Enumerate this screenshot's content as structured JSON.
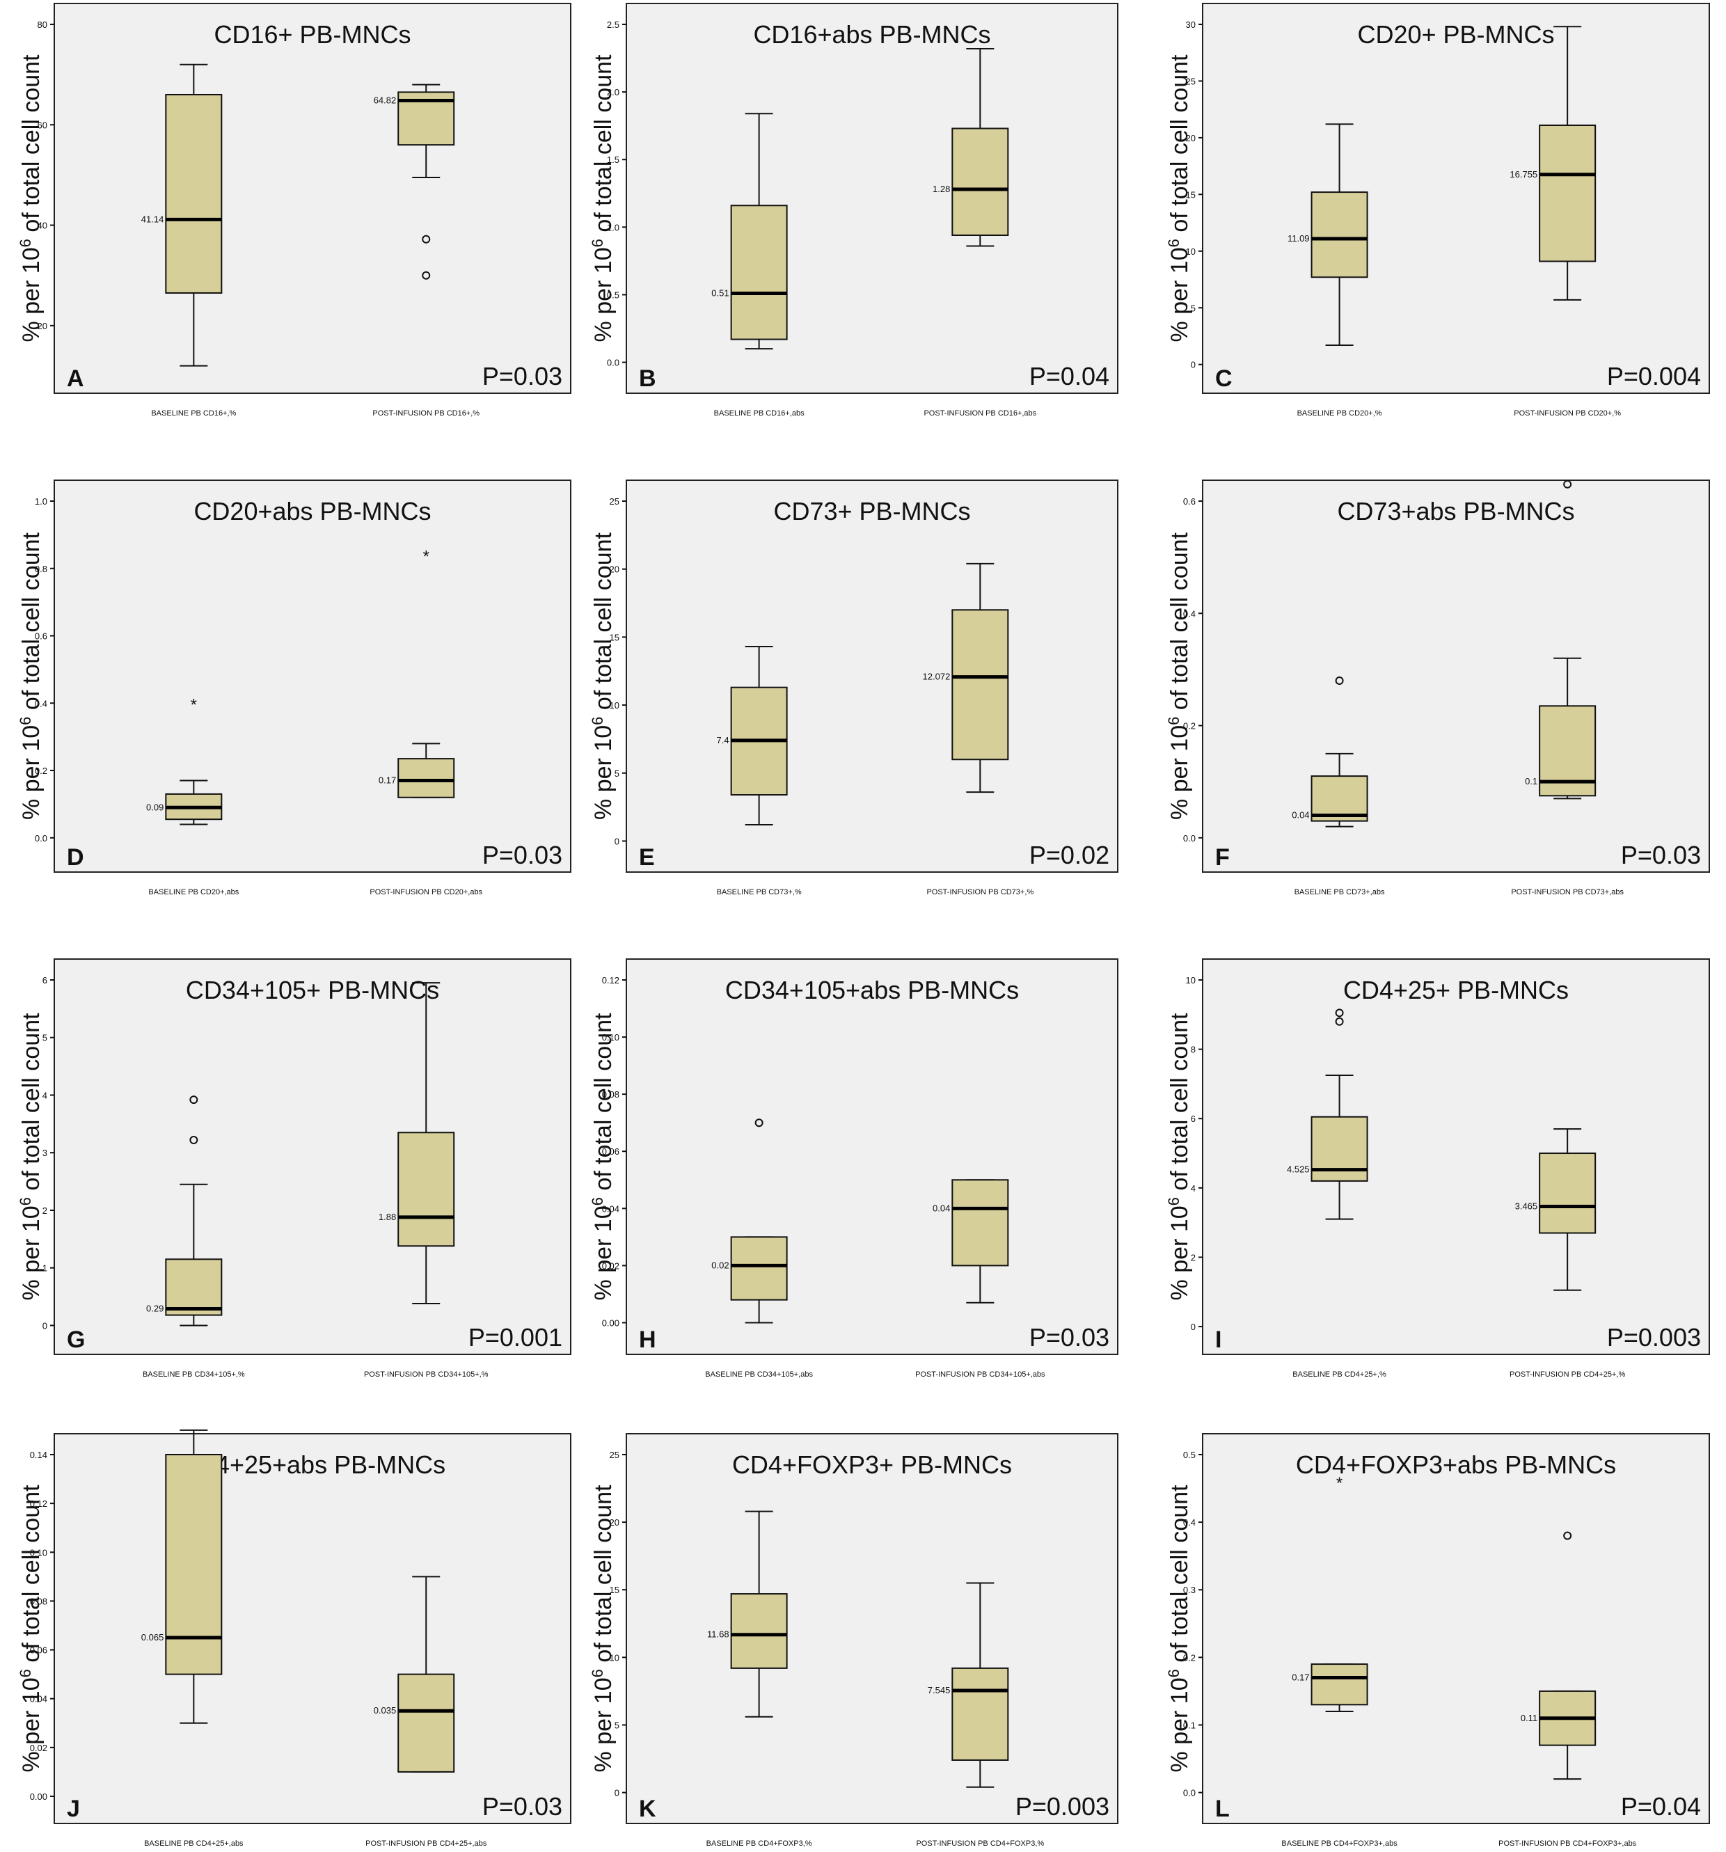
{
  "chart_data": [
    {
      "type": "box",
      "letter": "A",
      "title": "CD16+ PB-MNCs",
      "pvalue": "P=0.03",
      "ylabel": "% per 10",
      "ylabel_sup": "6",
      "ylabel_tail": " of total cell count",
      "categories": [
        "BASELINE PB CD16+,%",
        "POST-INFUSION PB CD16+,%"
      ],
      "ylim": [
        10,
        80
      ],
      "yticks": [
        20,
        40,
        60,
        80
      ],
      "ytick_labels": [
        "20",
        "40",
        "60",
        "80"
      ],
      "boxes": [
        {
          "min": 12,
          "q1": 26.5,
          "median": 41.14,
          "q3": 66,
          "max": 72,
          "median_label": "41.14",
          "outliers": []
        },
        {
          "min": 49.5,
          "q1": 56,
          "median": 64.82,
          "q3": 66.5,
          "max": 68,
          "median_label": "64.82",
          "outliers": [
            {
              "value": 37.2,
              "marker": "o"
            },
            {
              "value": 30,
              "marker": "o"
            }
          ]
        }
      ]
    },
    {
      "type": "box",
      "letter": "B",
      "title": "CD16+abs PB-MNCs",
      "pvalue": "P=0.04",
      "ylabel": "% per 10",
      "ylabel_sup": "6",
      "ylabel_tail": " of total cell count",
      "categories": [
        "BASELINE PB CD16+,abs",
        "POST-INFUSION PB CD16+,abs"
      ],
      "ylim": [
        -0.1,
        2.5
      ],
      "yticks": [
        0,
        0.5,
        1,
        1.5,
        2,
        2.5
      ],
      "ytick_labels": [
        "0.0",
        "0.5",
        "1.0",
        "1.5",
        "2.0",
        "2.5"
      ],
      "boxes": [
        {
          "min": 0.1,
          "q1": 0.17,
          "median": 0.51,
          "q3": 1.16,
          "max": 1.84,
          "median_label": "0.51",
          "outliers": []
        },
        {
          "min": 0.86,
          "q1": 0.94,
          "median": 1.28,
          "q3": 1.73,
          "max": 2.32,
          "median_label": "1.28",
          "outliers": []
        }
      ]
    },
    {
      "type": "box",
      "letter": "C",
      "title": "CD20+ PB-MNCs",
      "pvalue": "P=0.004",
      "ylabel": "% per 10",
      "ylabel_sup": "6",
      "ylabel_tail": " of total cell count",
      "categories": [
        "BASELINE PB CD20+,%",
        "POST-INFUSION PB CD20+,%"
      ],
      "ylim": [
        -1,
        30
      ],
      "yticks": [
        0,
        5,
        10,
        15,
        20,
        25,
        30
      ],
      "ytick_labels": [
        "0",
        "5",
        "10",
        "15",
        "20",
        "25",
        "30"
      ],
      "boxes": [
        {
          "min": 1.7,
          "q1": 7.7,
          "median": 11.09,
          "q3": 15.2,
          "max": 21.2,
          "median_label": "11.09",
          "outliers": []
        },
        {
          "min": 5.7,
          "q1": 9.1,
          "median": 16.755,
          "q3": 21.1,
          "max": 29.8,
          "median_label": "16.755",
          "outliers": []
        }
      ]
    },
    {
      "type": "box",
      "letter": "D",
      "title": "CD20+abs PB-MNCs",
      "pvalue": "P=0.03",
      "ylabel": "% per 10",
      "ylabel_sup": "6",
      "ylabel_tail": " of total cell count",
      "categories": [
        "BASELINE PB CD20+,abs",
        "POST-INFUSION PB CD20+,abs"
      ],
      "ylim": [
        -0.05,
        1
      ],
      "yticks": [
        0,
        0.2,
        0.4,
        0.6,
        0.8,
        1
      ],
      "ytick_labels": [
        "0.0",
        "0.2",
        "0.4",
        "0.6",
        "0.8",
        "1.0"
      ],
      "boxes": [
        {
          "min": 0.04,
          "q1": 0.055,
          "median": 0.09,
          "q3": 0.13,
          "max": 0.17,
          "median_label": "0.09",
          "outliers": [
            {
              "value": 0.4,
              "marker": "*"
            }
          ]
        },
        {
          "min": 0.12,
          "q1": 0.12,
          "median": 0.17,
          "q3": 0.235,
          "max": 0.28,
          "median_label": "0.17",
          "outliers": [
            {
              "value": 0.84,
              "marker": "*"
            }
          ]
        }
      ]
    },
    {
      "type": "box",
      "letter": "E",
      "title": "CD73+ PB-MNCs",
      "pvalue": "P=0.02",
      "ylabel": "% per 10",
      "ylabel_sup": "6",
      "ylabel_tail": " of total cell count",
      "categories": [
        "BASELINE PB CD73+,%",
        "POST-INFUSION PB CD73+,%"
      ],
      "ylim": [
        -1,
        25
      ],
      "yticks": [
        0,
        5,
        10,
        15,
        20,
        25
      ],
      "ytick_labels": [
        "0",
        "5",
        "10",
        "15",
        "20",
        "25"
      ],
      "boxes": [
        {
          "min": 1.2,
          "q1": 3.4,
          "median": 7.4,
          "q3": 11.3,
          "max": 14.3,
          "median_label": "7.4",
          "outliers": []
        },
        {
          "min": 3.6,
          "q1": 6,
          "median": 12.072,
          "q3": 17,
          "max": 20.4,
          "median_label": "12.072",
          "outliers": []
        }
      ]
    },
    {
      "type": "box",
      "letter": "F",
      "title": "CD73+abs PB-MNCs",
      "pvalue": "P=0.03",
      "ylabel": "% per 10",
      "ylabel_sup": "6",
      "ylabel_tail": " of total cell count",
      "categories": [
        "BASELINE PB CD73+,abs",
        "POST-INFUSION PB CD73+,abs"
      ],
      "ylim": [
        -0.03,
        0.6
      ],
      "yticks": [
        0,
        0.2,
        0.4,
        0.6
      ],
      "ytick_labels": [
        "0.0",
        "0.2",
        "0.4",
        "0.6"
      ],
      "boxes": [
        {
          "min": 0.02,
          "q1": 0.03,
          "median": 0.04,
          "q3": 0.11,
          "max": 0.15,
          "median_label": "0.04",
          "outliers": [
            {
              "value": 0.28,
              "marker": "o"
            }
          ]
        },
        {
          "min": 0.07,
          "q1": 0.075,
          "median": 0.1,
          "q3": 0.235,
          "max": 0.32,
          "median_label": "0.1",
          "outliers": [
            {
              "value": 0.63,
              "marker": "o"
            }
          ]
        }
      ]
    },
    {
      "type": "box",
      "letter": "G",
      "title": "CD34+105+ PB-MNCs",
      "pvalue": "P=0.001",
      "ylabel": "% per 10",
      "ylabel_sup": "6",
      "ylabel_tail": " of total cell count",
      "categories": [
        "BASELINE PB CD34+105+,%",
        "POST-INFUSION PB CD34+105+,%"
      ],
      "ylim": [
        -0.2,
        6
      ],
      "yticks": [
        0,
        1,
        2,
        3,
        4,
        5,
        6
      ],
      "ytick_labels": [
        "0",
        "1",
        "2",
        "3",
        "4",
        "5",
        "6"
      ],
      "boxes": [
        {
          "min": 0,
          "q1": 0.18,
          "median": 0.29,
          "q3": 1.15,
          "max": 2.45,
          "median_label": "0.29",
          "outliers": [
            {
              "value": 3.92,
              "marker": "o"
            },
            {
              "value": 3.22,
              "marker": "o"
            }
          ]
        },
        {
          "min": 0.38,
          "q1": 1.38,
          "median": 1.88,
          "q3": 3.35,
          "max": 5.95,
          "median_label": "1.88",
          "outliers": []
        }
      ]
    },
    {
      "type": "box",
      "letter": "H",
      "title": "CD34+105+abs PB-MNCs",
      "pvalue": "P=0.03",
      "ylabel": "% per 10",
      "ylabel_sup": "6",
      "ylabel_tail": " of total cell count",
      "categories": [
        "BASELINE PB CD34+105+,abs",
        "POST-INFUSION PB CD34+105+,abs"
      ],
      "ylim": [
        -0.005,
        0.12
      ],
      "yticks": [
        0,
        0.02,
        0.04,
        0.06,
        0.08,
        0.1,
        0.12
      ],
      "ytick_labels": [
        "0.00",
        "0.02",
        "0.04",
        "0.06",
        "0.08",
        "0.10",
        "0.12"
      ],
      "boxes": [
        {
          "min": 0,
          "q1": 0.008,
          "median": 0.02,
          "q3": 0.03,
          "max": 0.03,
          "median_label": "0.02",
          "outliers": [
            {
              "value": 0.07,
              "marker": "o"
            }
          ]
        },
        {
          "min": 0.007,
          "q1": 0.02,
          "median": 0.04,
          "q3": 0.05,
          "max": 0.05,
          "median_label": "0.04",
          "outliers": []
        }
      ]
    },
    {
      "type": "box",
      "letter": "I",
      "title": "CD4+25+ PB-MNCs",
      "pvalue": "P=0.003",
      "ylabel": "% per 10",
      "ylabel_sup": "6",
      "ylabel_tail": " of total cell count",
      "categories": [
        "BASELINE PB CD4+25+,%",
        "POST-INFUSION PB CD4+25+,%"
      ],
      "ylim": [
        -0.3,
        10
      ],
      "yticks": [
        0,
        2,
        4,
        6,
        8,
        10
      ],
      "ytick_labels": [
        "0",
        "2",
        "4",
        "6",
        "8",
        "10"
      ],
      "boxes": [
        {
          "min": 3.1,
          "q1": 4.2,
          "median": 4.525,
          "q3": 6.05,
          "max": 7.25,
          "median_label": "4.525",
          "outliers": [
            {
              "value": 9.05,
              "marker": "o"
            },
            {
              "value": 8.8,
              "marker": "o"
            }
          ]
        },
        {
          "min": 1.05,
          "q1": 2.7,
          "median": 3.465,
          "q3": 5,
          "max": 5.7,
          "median_label": "3.465",
          "outliers": []
        }
      ]
    },
    {
      "type": "box",
      "letter": "J",
      "title": "CD4+25+abs PB-MNCs",
      "pvalue": "P=0.03",
      "ylabel": "% per 10",
      "ylabel_sup": "6",
      "ylabel_tail": " of total cell count",
      "categories": [
        "BASELINE PB CD4+25+,abs",
        "POST-INFUSION PB CD4+25+,abs"
      ],
      "ylim": [
        -0.004,
        0.14
      ],
      "yticks": [
        0,
        0.02,
        0.04,
        0.06,
        0.08,
        0.1,
        0.12,
        0.14
      ],
      "ytick_labels": [
        "0.00",
        "0.02",
        "0.04",
        "0.06",
        "0.08",
        "0.10",
        "0.12",
        "0.14"
      ],
      "boxes": [
        {
          "min": 0.03,
          "q1": 0.05,
          "median": 0.065,
          "q3": 0.14,
          "max": 0.15,
          "median_label": "0.065",
          "outliers": []
        },
        {
          "min": 0.01,
          "q1": 0.01,
          "median": 0.035,
          "q3": 0.05,
          "max": 0.09,
          "median_label": "0.035",
          "outliers": []
        }
      ]
    },
    {
      "type": "box",
      "letter": "K",
      "title": "CD4+FOXP3+ PB-MNCs",
      "pvalue": "P=0.003",
      "ylabel": "% per 10",
      "ylabel_sup": "6",
      "ylabel_tail": " of total cell count",
      "categories": [
        "BASELINE PB CD4+FOXP3,%",
        "POST-INFUSION PB CD4+FOXP3,%"
      ],
      "ylim": [
        -1,
        25
      ],
      "yticks": [
        0,
        5,
        10,
        15,
        20,
        25
      ],
      "ytick_labels": [
        "0",
        "5",
        "10",
        "15",
        "20",
        "25"
      ],
      "boxes": [
        {
          "min": 5.6,
          "q1": 9.2,
          "median": 11.68,
          "q3": 14.7,
          "max": 20.8,
          "median_label": "11.68",
          "outliers": []
        },
        {
          "min": 0.4,
          "q1": 2.4,
          "median": 7.545,
          "q3": 9.2,
          "max": 15.5,
          "median_label": "7.545",
          "outliers": []
        }
      ]
    },
    {
      "type": "box",
      "letter": "L",
      "title": "CD4+FOXP3+abs PB-MNCs",
      "pvalue": "P=0.04",
      "ylabel": "% per 10",
      "ylabel_sup": "6",
      "ylabel_tail": " of total cell count",
      "categories": [
        "BASELINE PB CD4+FOXP3+,abs",
        "POST-INFUSION PB CD4+FOXP3+,abs"
      ],
      "ylim": [
        -0.02,
        0.5
      ],
      "yticks": [
        0,
        0.1,
        0.2,
        0.3,
        0.4,
        0.5
      ],
      "ytick_labels": [
        "0.0",
        "0.1",
        "0.2",
        "0.3",
        "0.4",
        "0.5"
      ],
      "boxes": [
        {
          "min": 0.12,
          "q1": 0.13,
          "median": 0.17,
          "q3": 0.19,
          "max": 0.19,
          "median_label": "0.17",
          "outliers": [
            {
              "value": 0.46,
              "marker": "*"
            }
          ]
        },
        {
          "min": 0.02,
          "q1": 0.07,
          "median": 0.11,
          "q3": 0.15,
          "max": 0.15,
          "median_label": "0.11",
          "outliers": [
            {
              "value": 0.38,
              "marker": "o"
            }
          ]
        }
      ]
    }
  ]
}
